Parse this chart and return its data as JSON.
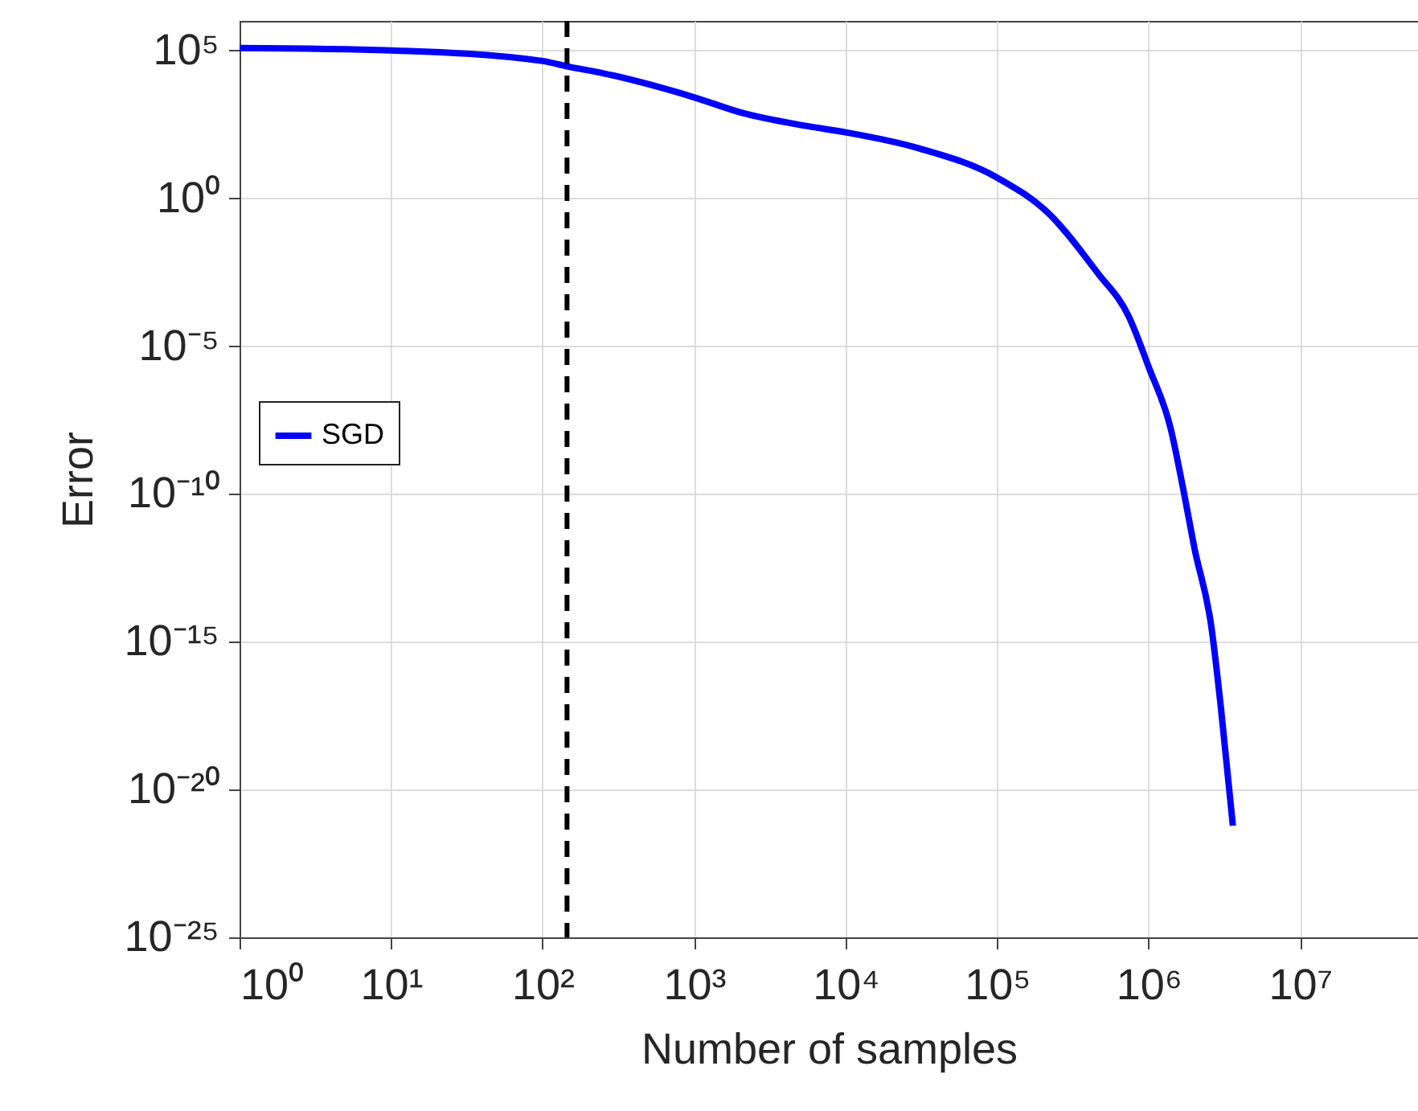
{
  "chart_data": {
    "type": "line",
    "xlabel": "Number of samples",
    "ylabel": "Error",
    "log": "xy",
    "grid": true,
    "legend": "left",
    "line_style": "solid",
    "marker": "none",
    "xlim": [
      1,
      60000000
    ],
    "ylim": [
      1e-25,
      1000000.0
    ],
    "xticks": [
      {
        "value": 1,
        "label": "10⁰"
      },
      {
        "value": 10,
        "label": "10¹"
      },
      {
        "value": 100,
        "label": "10²"
      },
      {
        "value": 1000,
        "label": "10³"
      },
      {
        "value": 10000,
        "label": "10⁴"
      },
      {
        "value": 100000,
        "label": "10⁵"
      },
      {
        "value": 1000000,
        "label": "10⁶"
      },
      {
        "value": 10000000,
        "label": "10⁷"
      }
    ],
    "yticks": [
      {
        "value": 1e-25,
        "label": "10⁻²⁵"
      },
      {
        "value": 1e-20,
        "label": "10⁻²⁰"
      },
      {
        "value": 1e-15,
        "label": "10⁻¹⁵"
      },
      {
        "value": 1e-10,
        "label": "10⁻¹⁰"
      },
      {
        "value": 1e-05,
        "label": "10⁻⁵"
      },
      {
        "value": 1,
        "label": "10⁰"
      },
      {
        "value": 100000,
        "label": "10⁵"
      }
    ],
    "x": [
      1,
      10,
      100,
      145,
      250,
      1000,
      2100,
      5500,
      10000,
      30000,
      100000,
      220000,
      460000,
      740000,
      1000000,
      1400000,
      1700000,
      2000000,
      2600000,
      3000000,
      3600000
    ],
    "series": [
      {
        "name": "SGD",
        "color": "#0000ff",
        "values": [
          120000,
          100000,
          44000,
          29000,
          17000,
          2600,
          760,
          280,
          170,
          50,
          5,
          0.3,
          0.003,
          0.0001,
          2e-06,
          1.6e-08,
          1.3e-10,
          1.6e-12,
          3e-15,
          6e-18,
          6e-22
        ]
      }
    ],
    "ref_lines": [
      {
        "axis": "x",
        "value": 145,
        "color": "#000000",
        "line_style": "dashed"
      }
    ]
  }
}
